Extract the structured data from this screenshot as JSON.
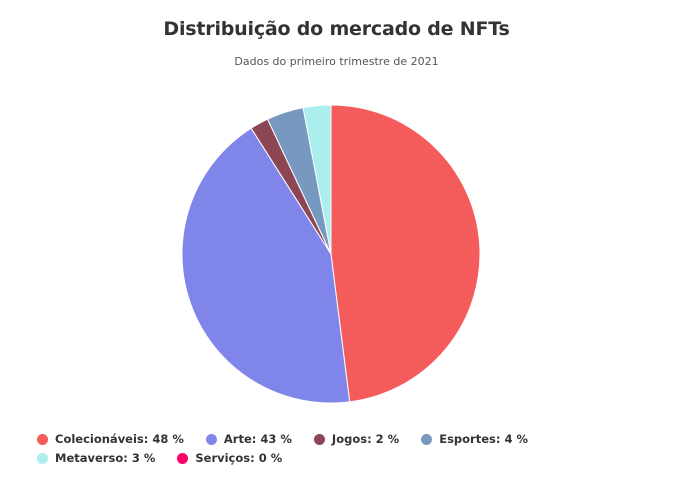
{
  "chart_data": {
    "type": "pie",
    "title": "Distribuição do mercado de NFTs",
    "subtitle": "Dados do primeiro trimestre de 2021",
    "legend_position": "bottom",
    "slices": [
      {
        "label": "Colecionáveis",
        "value": 48,
        "color": "#f45b5b",
        "legend_text": "Colecionáveis: 48 %"
      },
      {
        "label": "Arte",
        "value": 43,
        "color": "#8085e9",
        "legend_text": "Arte: 43 %"
      },
      {
        "label": "Jogos",
        "value": 2,
        "color": "#8d4654",
        "legend_text": "Jogos: 2 %"
      },
      {
        "label": "Esportes",
        "value": 4,
        "color": "#7798bf",
        "legend_text": "Esportes: 4 %"
      },
      {
        "label": "Metaverso",
        "value": 3,
        "color": "#aaeeee",
        "legend_text": "Metaverso: 3 %"
      },
      {
        "label": "Serviços",
        "value": 0,
        "color": "#ff0066",
        "legend_text": "Serviços: 0 %"
      }
    ]
  }
}
